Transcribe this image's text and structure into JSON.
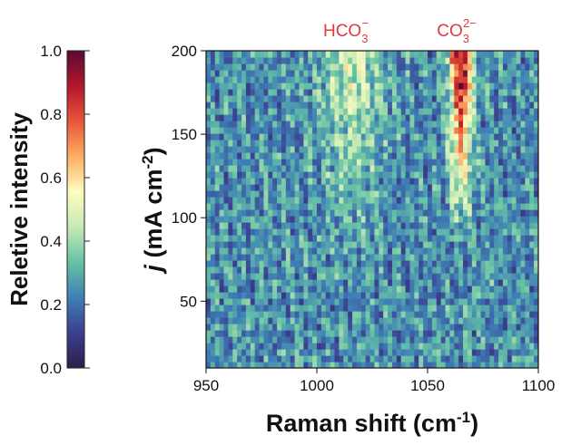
{
  "chart_data": {
    "type": "heatmap",
    "xlabel": "Raman shift (cm⁻¹)",
    "ylabel": "j (mA cm⁻²)",
    "xlim": [
      950,
      1100
    ],
    "ylim": [
      10,
      200
    ],
    "xticks": [
      950,
      1000,
      1050,
      1100
    ],
    "yticks": [
      50,
      100,
      150,
      200
    ],
    "grid": false,
    "colorbar": {
      "label": "Reletive intensity",
      "range": [
        0.0,
        1.0
      ],
      "ticks": [
        "0.0",
        "0.2",
        "0.4",
        "0.6",
        "0.8",
        "1.0"
      ],
      "colormap": "Spectral_r",
      "stops": [
        "#2b1e4a",
        "#3b3f8f",
        "#3f7fb5",
        "#66c2a5",
        "#c7e9b4",
        "#fdfdbf",
        "#fdae61",
        "#e8553b",
        "#b2182b",
        "#5a0a33"
      ]
    },
    "annotations": [
      {
        "text": "HCO₃⁻",
        "x": 1015,
        "color": "#e0393e"
      },
      {
        "text": "CO₃²⁻",
        "x": 1065,
        "color": "#e0393e"
      }
    ],
    "peaks": [
      {
        "name": "HCO₃⁻",
        "center": 1016,
        "width": 13,
        "jrange": [
          90,
          200
        ],
        "max_intensity": 0.45
      },
      {
        "name": "CO₃²⁻",
        "center": 1065,
        "width": 5,
        "jrange": [
          110,
          200
        ],
        "max_intensity": 1.0
      }
    ],
    "background_intensity": 0.25
  }
}
